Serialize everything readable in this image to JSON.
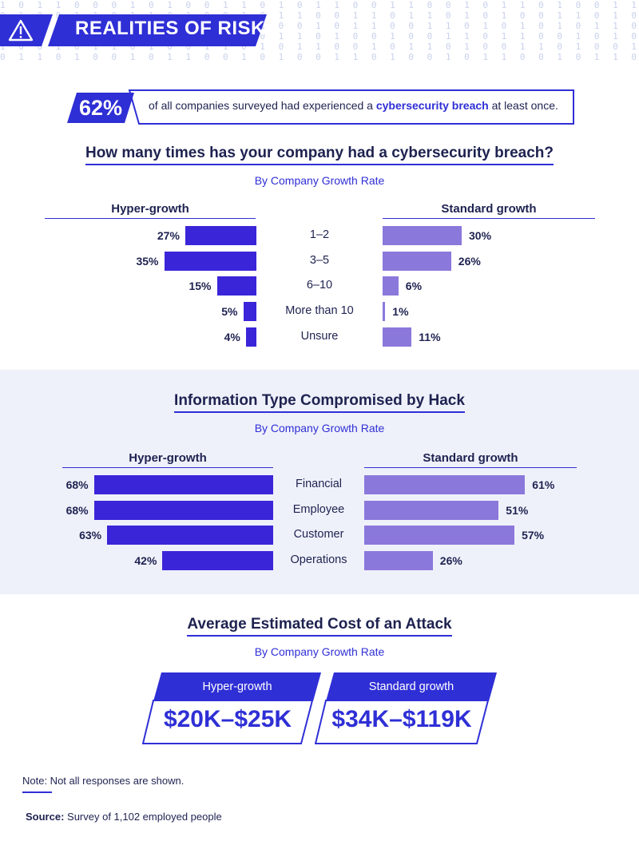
{
  "header": {
    "title": "REALITIES OF RISK",
    "icon": "warning-triangle-icon",
    "binary_rows": [
      "1 0 1 1 0 0 0 1 0 1 0 0 1 1 0 1 0 1 1 0 0 1 1 0 0 1 0 1 1 0 1 0 0 1 1 0 1 0 0 1 0 1 1 0 1 0 0 1 1 0 1 0 1",
      "0 1 0 0 1 1 0 1 1 0 1 0 0 1 0 1 1 0 0 1 1 0 1 1 0 1 0 1 0 0 1 1 0 1 0 1 0 0 1 1 0 1 0 1 1 0 1 0 0 1 0 1 0",
      "1 1 0 1 0 0 1 0 1 1 0 1 0 0 1 0 0 1 0 1 1 0 0 1 1 0 1 0 1 0 1 0 1 1 0 1 1 0 1 0 1 0 1 0 0 1 0 1 1 0 1 0 1",
      "0 0 1 0 1 1 0 1 0 0 1 0 1 0 0 1 1 0 1 0 0 1 0 0 1 1 0 1 1 0 0 1 0 1 0 0 1 0 1 0 1 1 0 0 1 0 1 0 0 1 0 1 0",
      "1 0 0 1 0 1 1 0 1 0 0 1 1 0 1 0 1 1 0 0 1 0 1 1 0 1 0 0 1 1 0 1 0 0 1 0 1 1 0 1 0 1 0 1 0 1 1 0 1 0 0 1 1",
      "0 1 1 0 1 0 0 1 0 1 1 0 0 1 0 1 0 0 1 1 0 1 0 0 1 0 1 1 0 0 1 0 1 1 0 1 0 1 0 1 1 0 1 0 1 0 1 0 1 1 0 1 0"
    ]
  },
  "stat": {
    "value": "62%",
    "text_before": "of all companies surveyed had experienced a ",
    "text_highlight": "cybersecurity breach",
    "text_after": " at least once."
  },
  "colors": {
    "accent": "#2f2fd6",
    "hyper": "#3b25d8",
    "standard": "#8b78db",
    "band": "#eff1fa",
    "text": "#1e2250"
  },
  "chart_data": [
    {
      "type": "bar",
      "title": "How many times has your company had a cybersecurity breach?",
      "subtitle": "By Company Growth Rate",
      "categories": [
        "1–2",
        "3–5",
        "6–10",
        "More than 10",
        "Unsure"
      ],
      "series": [
        {
          "name": "Hyper-growth",
          "values": [
            27,
            35,
            15,
            5,
            4
          ],
          "labels": [
            "27%",
            "35%",
            "15%",
            "5%",
            "4%"
          ]
        },
        {
          "name": "Standard growth",
          "values": [
            30,
            26,
            6,
            1,
            11
          ],
          "labels": [
            "30%",
            "26%",
            "6%",
            "1%",
            "11%"
          ]
        }
      ],
      "unit": "%"
    },
    {
      "type": "bar",
      "title": "Information Type Compromised by Hack",
      "subtitle": "By Company Growth Rate",
      "categories": [
        "Financial",
        "Employee",
        "Customer",
        "Operations"
      ],
      "series": [
        {
          "name": "Hyper-growth",
          "values": [
            68,
            68,
            63,
            42
          ],
          "labels": [
            "68%",
            "68%",
            "63%",
            "42%"
          ]
        },
        {
          "name": "Standard growth",
          "values": [
            61,
            51,
            57,
            26
          ],
          "labels": [
            "61%",
            "51%",
            "57%",
            "26%"
          ]
        }
      ],
      "unit": "%"
    }
  ],
  "cost": {
    "title": "Average Estimated Cost of an Attack",
    "subtitle": "By Company Growth Rate",
    "cards": [
      {
        "label": "Hyper-growth",
        "amount": "$20K–$25K"
      },
      {
        "label": "Standard growth",
        "amount": "$34K–$119K"
      }
    ]
  },
  "footer": {
    "note": "Note: Not all responses are shown.",
    "source_label": "Source:",
    "source_text": " Survey of 1,102 employed people"
  }
}
